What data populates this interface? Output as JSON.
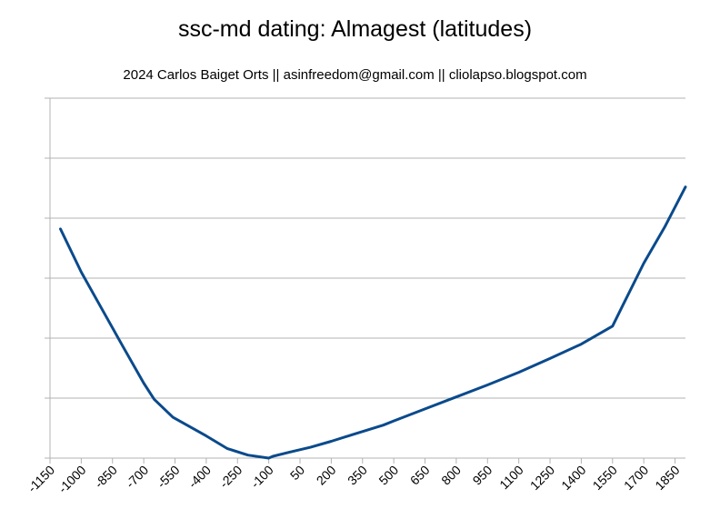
{
  "chart_data": {
    "type": "line",
    "title": "ssc-md dating: Almagest (latitudes)",
    "subtitle": "2024 Carlos Baiget Orts || asinfreedom@gmail.com || cliolapso.blogspot.com",
    "xlabel": "",
    "ylabel": "",
    "x_tick_labels": [
      "-1150",
      "-1000",
      "-850",
      "-700",
      "-550",
      "-400",
      "-250",
      "-100",
      "50",
      "200",
      "350",
      "500",
      "650",
      "800",
      "950",
      "1100",
      "1250",
      "1400",
      "1550",
      "1700",
      "1850"
    ],
    "x_tick_values": [
      -1150,
      -1000,
      -850,
      -700,
      -550,
      -400,
      -250,
      -100,
      50,
      200,
      350,
      500,
      650,
      800,
      950,
      1100,
      1250,
      1400,
      1550,
      1700,
      1850
    ],
    "xlim": [
      -1150,
      1900
    ],
    "ylim": [
      0,
      6
    ],
    "y_gridlines": 6,
    "y_tick_labels_shown": false,
    "grid": true,
    "series": [
      {
        "color": "#0a4a8c",
        "x": [
          -1100,
          -1000,
          -900,
          -800,
          -700,
          -650,
          -560,
          -400,
          -300,
          -200,
          -100,
          -80,
          0,
          100,
          200,
          300,
          450,
          500,
          650,
          800,
          950,
          1100,
          1250,
          1400,
          1550,
          1600,
          1700,
          1800,
          1900
        ],
        "y": [
          3.82,
          3.1,
          2.48,
          1.86,
          1.25,
          0.98,
          0.68,
          0.37,
          0.16,
          0.05,
          0.0,
          0.03,
          0.1,
          0.18,
          0.28,
          0.39,
          0.55,
          0.62,
          0.82,
          1.02,
          1.22,
          1.43,
          1.66,
          1.9,
          2.2,
          2.55,
          3.25,
          3.85,
          4.52
        ]
      }
    ]
  }
}
